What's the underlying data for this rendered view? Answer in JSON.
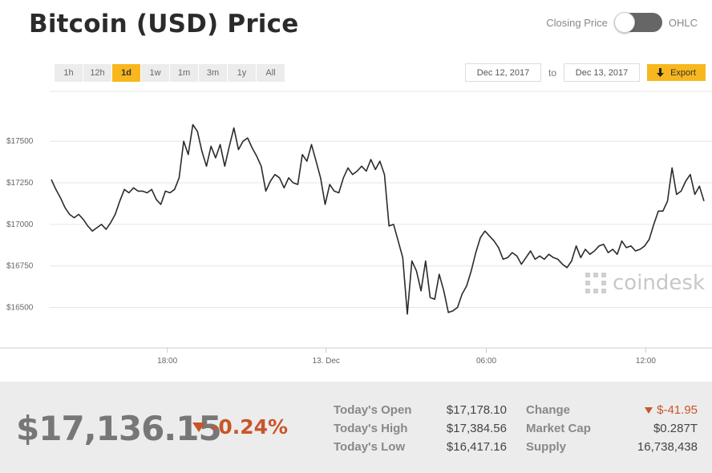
{
  "header": {
    "title": "Bitcoin (USD) Price",
    "toggle_left": "Closing Price",
    "toggle_right": "OHLC"
  },
  "ranges": [
    "1h",
    "12h",
    "1d",
    "1w",
    "1m",
    "3m",
    "1y",
    "All"
  ],
  "active_range": "1d",
  "date_range": {
    "from": "Dec 12, 2017",
    "to_label": "to",
    "to": "Dec 13, 2017",
    "export_label": "Export"
  },
  "watermark": "coindesk",
  "colors": {
    "accent": "#f7b71d",
    "negative": "#c9552b",
    "line": "#2b2b2b",
    "grid": "#e6e6e6"
  },
  "chart_data": {
    "type": "line",
    "series": [
      {
        "values": [
          17270,
          17210,
          17160,
          17100,
          17060,
          17040,
          17060,
          17030,
          16990,
          16960,
          16980,
          17000,
          16970,
          17010,
          17060,
          17140,
          17210,
          17190,
          17220,
          17200,
          17200,
          17190,
          17210,
          17150,
          17120,
          17200,
          17190,
          17210,
          17280,
          17500,
          17420,
          17600,
          17560,
          17440,
          17350,
          17470,
          17400,
          17480,
          17350,
          17470,
          17580,
          17450,
          17500,
          17520,
          17460,
          17410,
          17350,
          17200,
          17260,
          17300,
          17280,
          17220,
          17280,
          17250,
          17240,
          17420,
          17380,
          17480,
          17380,
          17280,
          17120,
          17240,
          17200,
          17190,
          17280,
          17340,
          17300,
          17320,
          17350,
          17320,
          17390,
          17330,
          17380,
          17300,
          16990,
          17000,
          16900,
          16800,
          16460,
          16780,
          16720,
          16600,
          16780,
          16560,
          16550,
          16700,
          16600,
          16470,
          16480,
          16500,
          16580,
          16630,
          16720,
          16830,
          16920,
          16960,
          16930,
          16900,
          16860,
          16790,
          16800,
          16830,
          16810,
          16760,
          16800,
          16840,
          16790,
          16810,
          16790,
          16820,
          16800,
          16790,
          16760,
          16740,
          16780,
          16870,
          16800,
          16850,
          16820,
          16840,
          16870,
          16880,
          16830,
          16850,
          16820,
          16900,
          16860,
          16870,
          16840,
          16850,
          16870,
          16910,
          17000,
          17080,
          17080,
          17140,
          17340,
          17180,
          17200,
          17260,
          17300,
          17180,
          17230,
          17140
        ]
      }
    ],
    "x_ticks": [
      {
        "label": "18:00",
        "pos": 0.235
      },
      {
        "label": "13. Dec",
        "pos": 0.458
      },
      {
        "label": "06:00",
        "pos": 0.683
      },
      {
        "label": "12:00",
        "pos": 0.907
      }
    ],
    "y_ticks": [
      16500,
      16750,
      17000,
      17250,
      17500
    ],
    "y_tick_labels": [
      "$16500",
      "$16750",
      "$17000",
      "$17250",
      "$17500"
    ],
    "ylim": [
      16300,
      17800
    ],
    "grid": true,
    "legend": "none"
  },
  "summary": {
    "price": "$17,136.15",
    "pct_change": "-0.24%",
    "todays_open_label": "Today's Open",
    "todays_open": "$17,178.10",
    "todays_high_label": "Today's High",
    "todays_high": "$17,384.56",
    "todays_low_label": "Today's Low",
    "todays_low": "$16,417.16",
    "change_label": "Change",
    "change": "$-41.95",
    "market_cap_label": "Market Cap",
    "market_cap": "$0.287T",
    "supply_label": "Supply",
    "supply": "16,738,438"
  }
}
